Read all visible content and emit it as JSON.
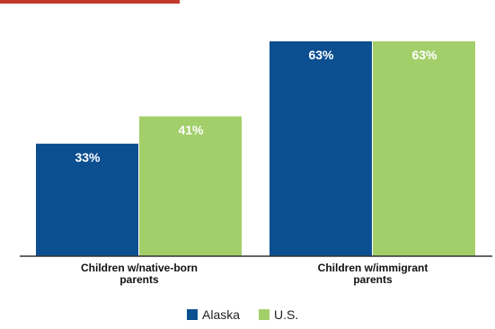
{
  "chart_data": {
    "type": "bar",
    "categories": [
      "Children w/native-born parents",
      "Children w/immigrant parents"
    ],
    "category_lines": [
      [
        "Children w/native-born",
        "parents"
      ],
      [
        "Children w/immigrant",
        "parents"
      ]
    ],
    "series": [
      {
        "name": "Alaska",
        "values": [
          33,
          63
        ],
        "labels": [
          "33%",
          "63%"
        ],
        "color": "#0b4f91"
      },
      {
        "name": "U.S.",
        "values": [
          41,
          63
        ],
        "labels": [
          "41%",
          "63%"
        ],
        "color": "#a3cf6a"
      }
    ],
    "ylim": [
      0,
      63
    ],
    "grid": false,
    "legend_position": "bottom-center",
    "colors": {
      "top_strip": "#c0392b"
    }
  }
}
